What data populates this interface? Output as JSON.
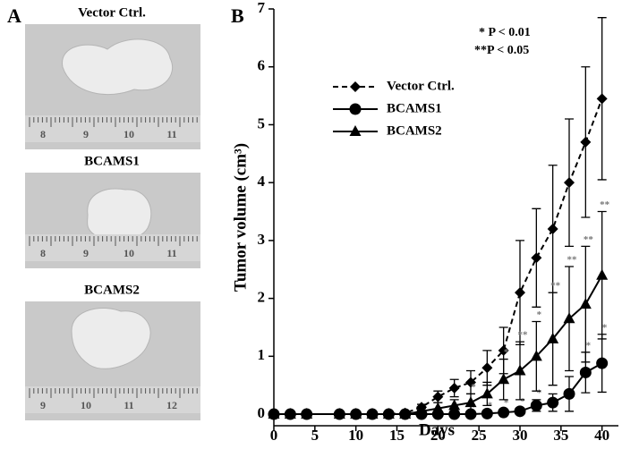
{
  "panel_a": {
    "label": "A",
    "photos": [
      {
        "title": "Vector Ctrl.",
        "ruler_labels": [
          "8",
          "9",
          "10",
          "11"
        ]
      },
      {
        "title": "BCAMS1",
        "ruler_labels": [
          "8",
          "9",
          "10",
          "11"
        ]
      },
      {
        "title": "BCAMS2",
        "ruler_labels": [
          "9",
          "10",
          "11",
          "12"
        ]
      }
    ]
  },
  "chart_data": {
    "type": "line",
    "panel_label": "B",
    "x_label": "Days",
    "y_label": "Tumor volume (cm³)",
    "annotations": [
      "* P < 0.01",
      "**P < 0.05"
    ],
    "x": [
      0,
      2,
      4,
      8,
      10,
      12,
      14,
      16,
      18,
      20,
      22,
      24,
      26,
      28,
      30,
      32,
      34,
      36,
      38,
      40
    ],
    "series": [
      {
        "name": "Vector Ctrl.",
        "color": "#000000",
        "marker": "diamond",
        "dashed": true,
        "values": [
          0,
          0,
          0,
          0,
          0,
          0,
          0,
          0.02,
          0.12,
          0.3,
          0.45,
          0.55,
          0.8,
          1.1,
          2.1,
          2.7,
          3.2,
          4.0,
          4.7,
          5.45
        ],
        "errors": [
          0,
          0,
          0,
          0,
          0,
          0,
          0,
          0.02,
          0.05,
          0.1,
          0.15,
          0.2,
          0.3,
          0.4,
          0.9,
          0.85,
          1.1,
          1.1,
          1.3,
          1.4
        ]
      },
      {
        "name": "BCAMS1",
        "color": "#000000",
        "marker": "circle",
        "dashed": false,
        "values": [
          0,
          0,
          0,
          0,
          0,
          0,
          0,
          0,
          0,
          0,
          0,
          0,
          0.01,
          0.03,
          0.05,
          0.15,
          0.2,
          0.35,
          0.72,
          0.88
        ],
        "errors": [
          0,
          0,
          0,
          0,
          0,
          0,
          0,
          0,
          0,
          0,
          0,
          0,
          0.02,
          0.05,
          0.05,
          0.1,
          0.15,
          0.3,
          0.35,
          0.5
        ],
        "significance": [
          null,
          null,
          null,
          null,
          null,
          null,
          null,
          null,
          null,
          null,
          null,
          "*",
          "*",
          "*",
          "*",
          "*",
          null,
          null,
          "*",
          "*"
        ]
      },
      {
        "name": "BCAMS2",
        "color": "#000000",
        "marker": "triangle",
        "dashed": false,
        "values": [
          0,
          0,
          0,
          0,
          0,
          0,
          0,
          0,
          0.05,
          0.1,
          0.15,
          0.2,
          0.35,
          0.6,
          0.75,
          1.0,
          1.3,
          1.65,
          1.9,
          2.4
        ],
        "errors": [
          0,
          0,
          0,
          0,
          0,
          0,
          0,
          0,
          0.05,
          0.1,
          0.1,
          0.15,
          0.2,
          0.35,
          0.5,
          0.6,
          0.8,
          0.9,
          1.0,
          1.1
        ],
        "significance": [
          null,
          null,
          null,
          null,
          null,
          null,
          null,
          null,
          null,
          null,
          null,
          "*",
          null,
          "*",
          "**",
          "*",
          "**",
          "**",
          "**",
          "**"
        ]
      }
    ],
    "xlim": [
      0,
      42
    ],
    "ylim": [
      -0.2,
      7
    ],
    "xticks": [
      0,
      5,
      10,
      15,
      20,
      25,
      30,
      35,
      40
    ],
    "yticks": [
      0,
      1,
      2,
      3,
      4,
      5,
      6,
      7
    ]
  }
}
